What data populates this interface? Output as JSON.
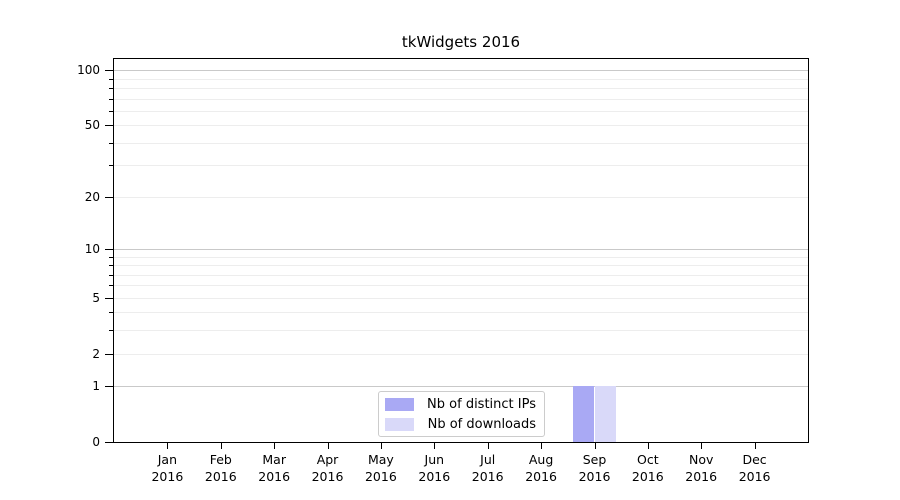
{
  "figure": {
    "background": "#ffffff"
  },
  "chart_data": {
    "type": "bar",
    "title": "tkWidgets 2016",
    "categories": [
      "Jan 2016",
      "Feb 2016",
      "Mar 2016",
      "Apr 2016",
      "May 2016",
      "Jun 2016",
      "Jul 2016",
      "Aug 2016",
      "Sep 2016",
      "Oct 2016",
      "Nov 2016",
      "Dec 2016"
    ],
    "series": [
      {
        "name": "Nb of distinct IPs",
        "color": "#a9a9f4",
        "values": [
          0,
          0,
          0,
          0,
          0,
          0,
          0,
          0,
          1,
          0,
          0,
          0
        ]
      },
      {
        "name": "Nb of downloads",
        "color": "#d9d9f9",
        "values": [
          0,
          0,
          0,
          0,
          0,
          0,
          0,
          0,
          1,
          0,
          0,
          0
        ]
      }
    ],
    "xlabel": "",
    "ylabel": "",
    "yscale": "log1p",
    "ylim": [
      0,
      115
    ],
    "y_ticks": [
      0,
      1,
      2,
      5,
      10,
      20,
      50,
      100
    ],
    "y_major_gridlines": [
      1,
      10,
      100
    ],
    "y_minor_gridlines": [
      2,
      3,
      4,
      5,
      6,
      7,
      8,
      9,
      20,
      30,
      40,
      50,
      60,
      70,
      80,
      90
    ],
    "grid": "horizontal",
    "grid_major_color": "#c9c9c9",
    "grid_minor_color": "#ededed",
    "legend_position": "inside-bottom-center",
    "legend_entries": [
      "Nb of distinct IPs",
      "Nb of downloads"
    ]
  }
}
